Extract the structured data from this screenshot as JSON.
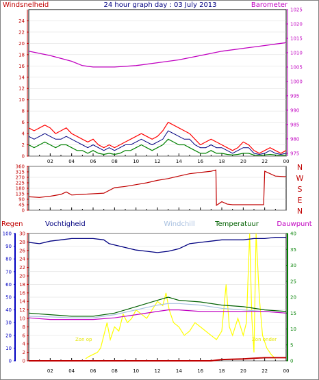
{
  "header": {
    "wind_title": "Windsnelheid",
    "main_title": "24 hour graph day : 03 July 2013",
    "baro_title": "Barometer"
  },
  "bottom_header": {
    "regen": "Regen",
    "vochtigheid": "Vochtigheid",
    "windchill": "Windchill",
    "temperatuur": "Temperatuur",
    "dauwpunt": "Dauwpunt"
  },
  "annotations": {
    "sun_rise": "Zon op",
    "sun_set": "Zon onder"
  },
  "direction_labels": [
    "N",
    "W",
    "S",
    "E",
    "N"
  ],
  "time_labels": [
    "02",
    "04",
    "06",
    "08",
    "10",
    "12",
    "14",
    "16",
    "18",
    "20",
    "22",
    "00"
  ],
  "colors": {
    "wind_axis": "#c00000",
    "gust": "#ff0000",
    "average": "#008000",
    "mean": "#000080",
    "barometer": "#c000c0",
    "direction": "#c00000",
    "humidity": "#000080",
    "temperature": "#006000",
    "windchill": "#a8c0e0",
    "dewpoint": "#c000c0",
    "solar": "#ffff00",
    "rain": "#c00000",
    "rain_axis": "#0000c0",
    "temp_axis": "#008000",
    "grid": "#d8d8d8"
  },
  "chart_data": [
    {
      "type": "line",
      "name": "wind-barometer",
      "title": "24 hour graph day : 03 July 2013",
      "xlabel": "",
      "x_range": [
        0,
        24
      ],
      "ylabel_left": "Windsnelheid",
      "ylim_left": [
        0,
        26
      ],
      "yticks_left": [
        0,
        2,
        4,
        6,
        8,
        10,
        12,
        14,
        16,
        18,
        20,
        22,
        24
      ],
      "ylabel_right": "Barometer",
      "ylim_right": [
        974,
        1025
      ],
      "yticks_right": [
        975,
        980,
        985,
        990,
        995,
        1000,
        1005,
        1010,
        1015,
        1020,
        1025
      ],
      "series": [
        {
          "axis": "right",
          "x": [
            0,
            2,
            4,
            5,
            6,
            8,
            10,
            12,
            14,
            16,
            18,
            20,
            22,
            24
          ],
          "values": [
            1010.5,
            1009,
            1007,
            1005.5,
            1005,
            1005,
            1005.5,
            1006.5,
            1007.5,
            1009,
            1010.5,
            1011.5,
            1012.5,
            1013.5
          ]
        },
        {
          "axis": "left",
          "x": [
            0,
            0.5,
            1,
            1.5,
            2,
            2.5,
            3,
            3.5,
            4,
            4.5,
            5,
            5.5,
            6,
            6.5,
            7,
            7.5,
            8,
            8.5,
            9,
            9.5,
            10,
            10.5,
            11,
            11.5,
            12,
            12.5,
            13,
            13.5,
            14,
            14.5,
            15,
            15.5,
            16,
            16.5,
            17,
            17.5,
            18,
            18.5,
            19,
            19.5,
            20,
            20.5,
            21,
            21.5,
            22,
            22.5,
            23,
            23.5,
            24
          ],
          "values": [
            5,
            4.5,
            5,
            5.5,
            5,
            4,
            4.5,
            5,
            4,
            3.5,
            3,
            2.5,
            3,
            2,
            1.5,
            2,
            1.5,
            2,
            2.5,
            3,
            3.5,
            4,
            3.5,
            3,
            3.5,
            4.5,
            6,
            5.5,
            5,
            4.5,
            4,
            3,
            2,
            2.5,
            3,
            2.5,
            2,
            1.5,
            1,
            1.5,
            2.5,
            2,
            1,
            0.5,
            1,
            1.5,
            1,
            0.5,
            1
          ]
        },
        {
          "axis": "left",
          "x": [
            0,
            0.5,
            1,
            1.5,
            2,
            2.5,
            3,
            3.5,
            4,
            4.5,
            5,
            5.5,
            6,
            6.5,
            7,
            7.5,
            8,
            8.5,
            9,
            9.5,
            10,
            10.5,
            11,
            11.5,
            12,
            12.5,
            13,
            13.5,
            14,
            14.5,
            15,
            15.5,
            16,
            16.5,
            17,
            17.5,
            18,
            18.5,
            19,
            19.5,
            20,
            20.5,
            21,
            21.5,
            22,
            22.5,
            23,
            23.5,
            24
          ],
          "values": [
            3.5,
            3,
            3.5,
            4,
            3.5,
            3,
            3,
            3.5,
            3,
            2.5,
            2,
            1.5,
            2,
            1.5,
            1,
            1.5,
            1,
            1.5,
            2,
            2,
            2.5,
            3,
            2.5,
            2,
            2.5,
            3,
            4.5,
            4,
            3.5,
            3,
            3,
            2,
            1.5,
            1.5,
            2,
            1.5,
            1.5,
            1,
            0.5,
            1,
            1.5,
            1.5,
            0.5,
            0.3,
            0.5,
            1,
            0.5,
            0.3,
            0.5
          ]
        },
        {
          "axis": "left",
          "x": [
            0,
            0.5,
            1,
            1.5,
            2,
            2.5,
            3,
            3.5,
            4,
            4.5,
            5,
            5.5,
            6,
            6.5,
            7,
            7.5,
            8,
            8.5,
            9,
            9.5,
            10,
            10.5,
            11,
            11.5,
            12,
            12.5,
            13,
            13.5,
            14,
            14.5,
            15,
            15.5,
            16,
            16.5,
            17,
            17.5,
            18,
            18.5,
            19,
            19.5,
            20,
            20.5,
            21,
            21.5,
            22,
            22.5,
            23,
            23.5,
            24
          ],
          "values": [
            2,
            1.5,
            2,
            2.5,
            2,
            1.5,
            2,
            2,
            1.5,
            1,
            1,
            0.5,
            1,
            0.5,
            0.3,
            0.5,
            0.3,
            0.5,
            1,
            1,
            1.5,
            2,
            1.5,
            1,
            1.5,
            2,
            3,
            2.5,
            2,
            2,
            1.5,
            1,
            0.5,
            0.5,
            1,
            0.5,
            0.5,
            0.3,
            0.2,
            0.3,
            0.5,
            0.5,
            0.2,
            0.1,
            0.2,
            0.3,
            0.2,
            0.1,
            0.2
          ]
        }
      ]
    },
    {
      "type": "line",
      "name": "wind-direction",
      "x_range": [
        0,
        24
      ],
      "ylim": [
        0,
        360
      ],
      "yticks": [
        0,
        45,
        90,
        135,
        180,
        225,
        270,
        315,
        360
      ],
      "series": [
        {
          "x": [
            0,
            1,
            2,
            3,
            3.5,
            4,
            5,
            6,
            7,
            8,
            9,
            10,
            11,
            12,
            13,
            14,
            15,
            16,
            17,
            17.45,
            17.5,
            18,
            18.5,
            19,
            20,
            21,
            21.9,
            22,
            23,
            24
          ],
          "values": [
            110,
            105,
            115,
            130,
            150,
            125,
            130,
            135,
            140,
            185,
            195,
            210,
            225,
            245,
            260,
            280,
            300,
            310,
            320,
            330,
            40,
            70,
            50,
            45,
            45,
            45,
            45,
            320,
            280,
            275
          ]
        }
      ]
    },
    {
      "type": "line",
      "name": "humidity-temperature-solar",
      "x_range": [
        0,
        24
      ],
      "ylabel_left": "Vochtigheid",
      "ylim_left": [
        0,
        100
      ],
      "yticks_left": [
        0,
        10,
        20,
        30,
        40,
        50,
        60,
        70,
        80,
        90,
        100
      ],
      "ylim_left2": [
        0,
        30
      ],
      "yticks_left2": [
        0,
        2,
        4,
        6,
        8,
        10,
        12,
        14,
        16,
        18,
        20,
        22,
        24,
        26,
        28,
        30
      ],
      "ylim_right": [
        0,
        40
      ],
      "yticks_right": [
        0,
        5,
        10,
        15,
        20,
        25,
        30,
        35,
        40
      ],
      "series": [
        {
          "axis": "left",
          "x": [
            0,
            1,
            2,
            3,
            4,
            5,
            6,
            7,
            7.5,
            8,
            9,
            10,
            11,
            12,
            13,
            14,
            15,
            16,
            17,
            18,
            19,
            20,
            21,
            22,
            23,
            24
          ],
          "values": [
            93,
            92,
            94,
            95,
            96,
            96,
            96,
            95,
            92,
            91,
            89,
            87,
            86,
            85,
            86,
            88,
            92,
            93,
            94,
            95,
            95,
            95,
            96,
            96,
            97,
            97
          ]
        },
        {
          "axis": "right",
          "x": [
            0,
            2,
            4,
            6,
            8,
            10,
            12,
            13,
            14,
            16,
            18,
            20,
            22,
            24
          ],
          "values": [
            15,
            14.5,
            14,
            14,
            15,
            17,
            19,
            20,
            19,
            18.5,
            17.5,
            17,
            16,
            15.5
          ]
        },
        {
          "axis": "right",
          "x": [
            0,
            2,
            4,
            6,
            8,
            10,
            12,
            13,
            14,
            16,
            18,
            20,
            22,
            24
          ],
          "values": [
            14,
            13.8,
            13.5,
            13.5,
            14.5,
            16,
            17.5,
            18,
            18,
            17.5,
            16.5,
            16,
            15.5,
            15
          ]
        },
        {
          "axis": "right",
          "x": [
            0,
            2,
            4,
            6,
            8,
            10,
            12,
            13,
            14,
            16,
            18,
            20,
            22,
            24
          ],
          "values": [
            13.5,
            13,
            13,
            13,
            13.5,
            14.5,
            15.5,
            16,
            16,
            15.5,
            15.5,
            15.5,
            15.5,
            15
          ]
        },
        {
          "axis": "left2",
          "x": [
            5.3,
            5.6,
            6,
            6.4,
            6.7,
            7,
            7.3,
            7.6,
            8,
            8.4,
            8.8,
            9.2,
            9.6,
            10,
            10.5,
            11,
            11.5,
            12,
            12.5,
            12.8,
            13.1,
            13.5,
            14,
            14.5,
            15,
            15.5,
            16,
            16.5,
            17,
            17.5,
            18,
            18.4,
            18.7,
            19,
            19.5,
            20,
            20.3,
            20.6,
            20.8,
            21,
            21.2,
            21.5,
            21.8,
            22.2,
            22.6,
            23
          ],
          "values": [
            0.5,
            1,
            1.5,
            2,
            3,
            6,
            9,
            5,
            8,
            7,
            11,
            9,
            10,
            12,
            11,
            10,
            12,
            14,
            13,
            16,
            12,
            9,
            8,
            6,
            7,
            9,
            8,
            7,
            6,
            5,
            7,
            18,
            8,
            6,
            10,
            6,
            9,
            30,
            10,
            2,
            30,
            15,
            6,
            3,
            1.5,
            0.5
          ]
        },
        {
          "axis": "left",
          "x": [
            0,
            2,
            4,
            6,
            8,
            10,
            12,
            14,
            16,
            17,
            18,
            20,
            21,
            22,
            24
          ],
          "values": [
            0,
            0,
            0,
            0,
            0,
            0,
            0,
            0,
            0,
            0,
            1,
            1.5,
            2,
            2.5,
            2.5
          ]
        }
      ]
    }
  ]
}
